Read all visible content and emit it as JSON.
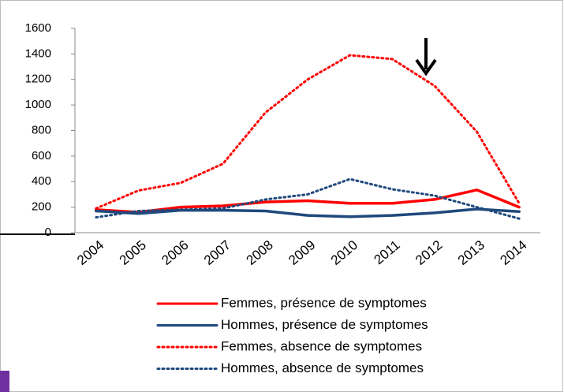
{
  "chart_data": {
    "type": "line",
    "categories": [
      "2004",
      "2005",
      "2006",
      "2007",
      "2008",
      "2009",
      "2010",
      "2011",
      "2012",
      "2013",
      "2014"
    ],
    "series": [
      {
        "name": "Femmes, présence de symptomes",
        "color": "#ff0000",
        "dash": false,
        "values": [
          180,
          160,
          200,
          210,
          240,
          250,
          230,
          230,
          260,
          335,
          200
        ]
      },
      {
        "name": "Hommes, présence de symptomes",
        "color": "#1f497d",
        "dash": false,
        "values": [
          170,
          150,
          175,
          175,
          170,
          135,
          125,
          135,
          155,
          185,
          165
        ]
      },
      {
        "name": "Femmes, absence de symptomes",
        "color": "#ff0000",
        "dash": true,
        "values": [
          190,
          330,
          390,
          540,
          940,
          1200,
          1390,
          1360,
          1150,
          790,
          230
        ]
      },
      {
        "name": "Hommes, absence de symptomes",
        "color": "#1f497d",
        "dash": true,
        "values": [
          120,
          170,
          180,
          190,
          260,
          300,
          420,
          340,
          290,
          200,
          110
        ]
      }
    ],
    "ylim": [
      0,
      1600
    ],
    "yticks": [
      0,
      200,
      400,
      600,
      800,
      1000,
      1200,
      1400,
      1600
    ],
    "grid": false
  }
}
